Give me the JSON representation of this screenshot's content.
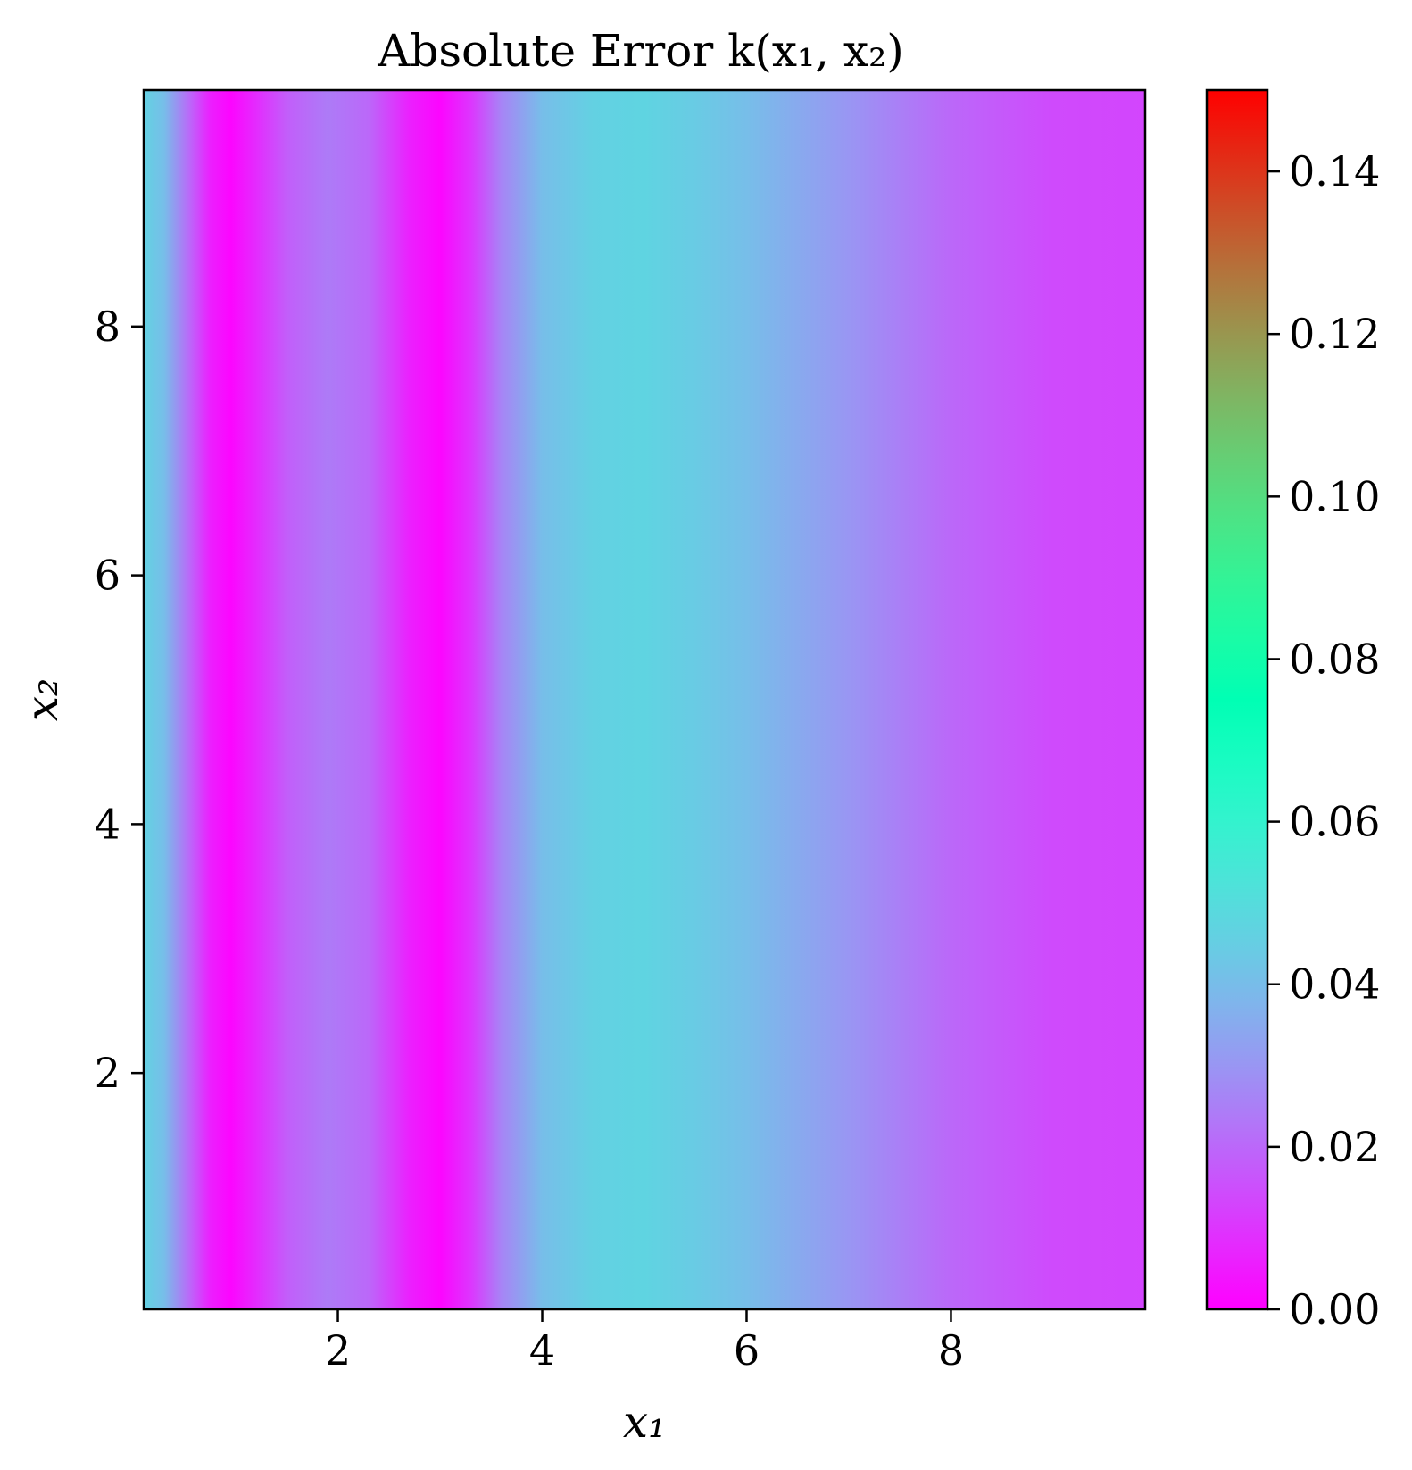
{
  "chart_data": {
    "type": "heatmap",
    "title": "Absolute Error k(x₁, x₂)",
    "xlabel": "x₁",
    "ylabel": "x₂",
    "xlim": [
      0.1,
      9.9
    ],
    "ylim": [
      0.1,
      9.9
    ],
    "x_ticks": [
      "2",
      "4",
      "6",
      "8"
    ],
    "y_ticks": [
      "2",
      "4",
      "6",
      "8"
    ],
    "colormap": "rainbow",
    "colorbar": {
      "range": [
        0.0,
        0.15
      ],
      "ticks": [
        "0.00",
        "0.02",
        "0.04",
        "0.06",
        "0.08",
        "0.10",
        "0.12",
        "0.14"
      ]
    },
    "value_profile_along_x1": {
      "x1": [
        0.1,
        0.3,
        0.55,
        0.75,
        0.95,
        1.2,
        1.5,
        1.9,
        2.3,
        2.7,
        3.0,
        3.3,
        3.6,
        4.0,
        4.5,
        5.0,
        5.5,
        6.0,
        7.0,
        8.0,
        9.0,
        9.9
      ],
      "error": [
        0.046,
        0.04,
        0.02,
        0.006,
        0.001,
        0.008,
        0.018,
        0.024,
        0.02,
        0.006,
        0.001,
        0.01,
        0.026,
        0.04,
        0.046,
        0.047,
        0.044,
        0.04,
        0.03,
        0.02,
        0.014,
        0.013
      ]
    },
    "gridlines": false,
    "legend": "colorbar-right"
  }
}
